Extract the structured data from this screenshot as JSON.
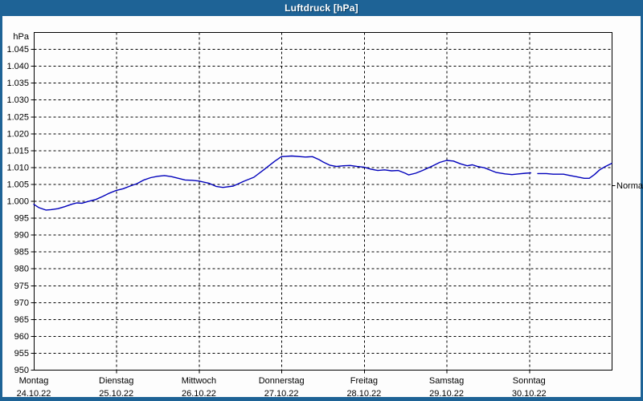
{
  "window": {
    "title": "Luftdruck [hPa]",
    "frame_color": "#1e6396",
    "background_color": "#fdfdfd"
  },
  "chart_data": {
    "type": "line",
    "title": "Luftdruck [hPa]",
    "ylabel": "hPa",
    "xlabel": "",
    "ylim": [
      950,
      1050
    ],
    "ytick_step": 5,
    "grid": "dashed",
    "legend_position": "none",
    "line_color": "#0000bb",
    "axis_color": "#000000",
    "yticks": [
      {
        "v": 1045,
        "label": "1.045"
      },
      {
        "v": 1040,
        "label": "1.040"
      },
      {
        "v": 1035,
        "label": "1.035"
      },
      {
        "v": 1030,
        "label": "1.030"
      },
      {
        "v": 1025,
        "label": "1.025"
      },
      {
        "v": 1020,
        "label": "1.020"
      },
      {
        "v": 1015,
        "label": "1.015"
      },
      {
        "v": 1010,
        "label": "1.010"
      },
      {
        "v": 1005,
        "label": "1.005"
      },
      {
        "v": 1000,
        "label": "1.000"
      },
      {
        "v": 995,
        "label": "995"
      },
      {
        "v": 990,
        "label": "990"
      },
      {
        "v": 985,
        "label": "985"
      },
      {
        "v": 980,
        "label": "980"
      },
      {
        "v": 975,
        "label": "975"
      },
      {
        "v": 970,
        "label": "970"
      },
      {
        "v": 965,
        "label": "965"
      },
      {
        "v": 960,
        "label": "960"
      },
      {
        "v": 955,
        "label": "955"
      },
      {
        "v": 950,
        "label": "950"
      }
    ],
    "hours_per_day": 24,
    "days": [
      {
        "name": "Montag",
        "date": "24.10.22"
      },
      {
        "name": "Dienstag",
        "date": "25.10.22"
      },
      {
        "name": "Mittwoch",
        "date": "26.10.22"
      },
      {
        "name": "Donnerstag",
        "date": "27.10.22"
      },
      {
        "name": "Freitag",
        "date": "28.10.22"
      },
      {
        "name": "Samstag",
        "date": "29.10.22"
      },
      {
        "name": "Sonntag",
        "date": "30.10.22"
      }
    ],
    "annotations": [
      {
        "label": "Normal",
        "value": 1004.6,
        "side": "right"
      }
    ],
    "series": [
      {
        "name": "Luftdruck",
        "unit": "hPa",
        "color": "#0000bb",
        "segments": [
          [
            [
              0,
              999.0
            ],
            [
              1.5,
              998.0
            ],
            [
              3.5,
              997.3
            ],
            [
              5,
              997.4
            ],
            [
              7,
              997.7
            ],
            [
              9,
              998.3
            ],
            [
              11,
              999.0
            ],
            [
              12.5,
              999.4
            ],
            [
              14,
              999.3
            ],
            [
              16,
              999.9
            ],
            [
              18,
              1000.4
            ],
            [
              20,
              1001.3
            ],
            [
              22,
              1002.3
            ],
            [
              24,
              1003.1
            ],
            [
              26,
              1003.6
            ],
            [
              28,
              1004.4
            ],
            [
              30,
              1005.1
            ],
            [
              32,
              1006.2
            ],
            [
              34,
              1006.9
            ],
            [
              36,
              1007.3
            ],
            [
              38,
              1007.5
            ],
            [
              40,
              1007.2
            ],
            [
              42,
              1006.7
            ],
            [
              44,
              1006.2
            ],
            [
              46,
              1006.1
            ],
            [
              48,
              1005.9
            ],
            [
              51,
              1005.2
            ],
            [
              53,
              1004.3
            ],
            [
              55,
              1004.0
            ],
            [
              58,
              1004.4
            ],
            [
              61,
              1005.8
            ],
            [
              64,
              1007.0
            ],
            [
              67,
              1009.3
            ],
            [
              70,
              1011.7
            ],
            [
              72,
              1013.1
            ],
            [
              75,
              1013.3
            ],
            [
              79,
              1013.0
            ],
            [
              81,
              1013.1
            ],
            [
              83,
              1012.2
            ],
            [
              84,
              1011.6
            ],
            [
              86,
              1010.6
            ],
            [
              88,
              1010.2
            ],
            [
              90,
              1010.4
            ],
            [
              92,
              1010.5
            ],
            [
              94,
              1010.2
            ],
            [
              96,
              1010.0
            ],
            [
              98,
              1009.4
            ],
            [
              100,
              1009.0
            ],
            [
              102,
              1009.2
            ],
            [
              104,
              1008.9
            ],
            [
              106,
              1009.0
            ],
            [
              108,
              1008.2
            ],
            [
              109,
              1007.7
            ],
            [
              111,
              1008.2
            ],
            [
              113,
              1009.0
            ],
            [
              116,
              1010.4
            ],
            [
              118,
              1011.4
            ],
            [
              120,
              1012.0
            ],
            [
              122,
              1011.8
            ],
            [
              124,
              1011.0
            ],
            [
              126,
              1010.4
            ],
            [
              127.5,
              1010.7
            ],
            [
              129,
              1010.2
            ],
            [
              131,
              1009.8
            ],
            [
              133,
              1009.0
            ],
            [
              134.5,
              1008.4
            ],
            [
              137,
              1008.0
            ],
            [
              139,
              1007.8
            ],
            [
              141,
              1008.0
            ],
            [
              143,
              1008.2
            ],
            [
              144.5,
              1008.3
            ]
          ],
          [
            [
              146.5,
              1008.1
            ],
            [
              149,
              1008.1
            ],
            [
              151,
              1007.9
            ],
            [
              154,
              1007.9
            ],
            [
              156,
              1007.5
            ],
            [
              158,
              1007.1
            ],
            [
              160,
              1006.7
            ],
            [
              161.5,
              1006.7
            ],
            [
              163,
              1007.8
            ],
            [
              164.5,
              1009.2
            ],
            [
              166,
              1010.1
            ],
            [
              167,
              1010.6
            ],
            [
              168,
              1011.1
            ]
          ]
        ]
      }
    ]
  }
}
